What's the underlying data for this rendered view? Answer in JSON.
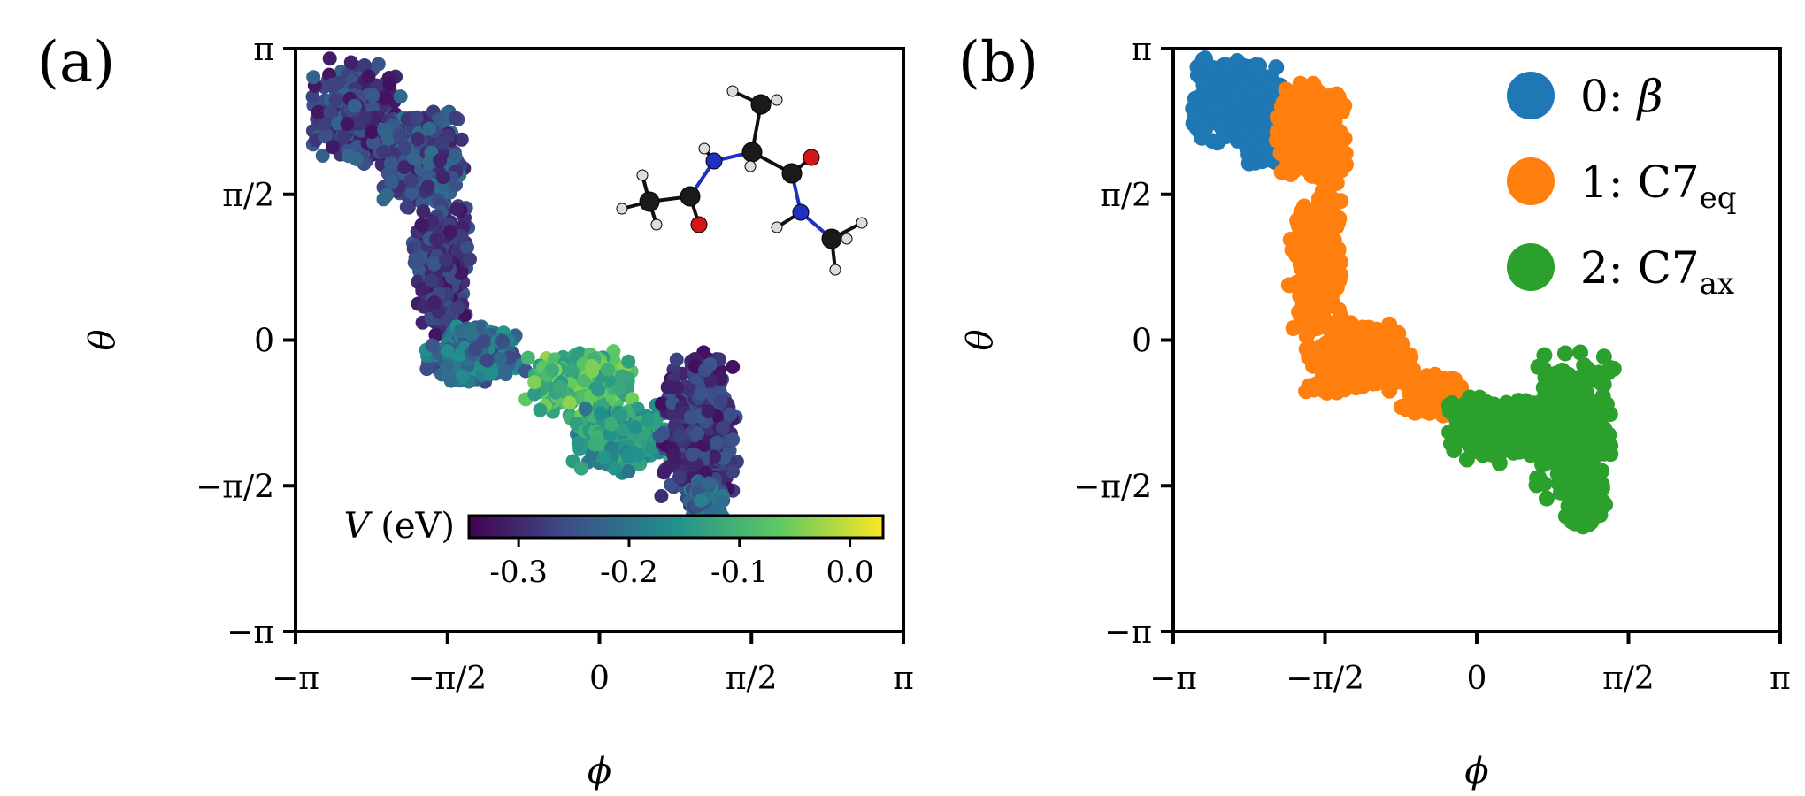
{
  "chart_data": [
    {
      "panel_label": "(a)",
      "type": "scatter",
      "title": "",
      "xlabel": "ϕ",
      "ylabel": "θ",
      "xlim": [
        -3.1416,
        3.1416
      ],
      "ylim": [
        -3.1416,
        3.1416
      ],
      "xticks": [
        -3.1416,
        -1.5708,
        0,
        1.5708,
        3.1416
      ],
      "xtick_labels": [
        "−π",
        "−π/2",
        "0",
        "π/2",
        "π"
      ],
      "yticks": [
        -3.1416,
        -1.5708,
        0,
        1.5708,
        3.1416
      ],
      "ytick_labels": [
        "−π",
        "−π/2",
        "0",
        "π/2",
        "π"
      ],
      "grid": false,
      "color_mapping": "potential energy V (eV), viridis colormap",
      "colorbar": {
        "label": "V (eV)",
        "range": [
          -0.345,
          0.03
        ],
        "ticks": [
          -0.3,
          -0.2,
          -0.1,
          0.0
        ],
        "tick_labels": [
          "-0.3",
          "-0.2",
          "-0.1",
          "0.0"
        ],
        "colors": [
          "#440154",
          "#3b528b",
          "#21918c",
          "#5ec962",
          "#fde725"
        ],
        "placement": "bottom-right inside axes"
      },
      "inset": "ball-and-stick molecule image (alanine dipeptide), top-right",
      "atom_colors": {
        "carbon": "#1a1a1a",
        "nitrogen": "#1f2fbf",
        "oxygen": "#d01818",
        "hydrogen": "#dcdcdc"
      },
      "regions": [
        {
          "x": [
            -3.0,
            -2.05
          ],
          "y": [
            1.85,
            3.05
          ],
          "V": [
            -0.33,
            -0.22
          ]
        },
        {
          "x": [
            -2.3,
            -1.35
          ],
          "y": [
            1.4,
            2.55
          ],
          "V": [
            -0.31,
            -0.2
          ]
        },
        {
          "x": [
            -1.95,
            -1.3
          ],
          "y": [
            0.0,
            1.6
          ],
          "V": [
            -0.33,
            -0.24
          ]
        },
        {
          "x": [
            -1.85,
            -0.75
          ],
          "y": [
            -0.5,
            0.2
          ],
          "V": [
            -0.27,
            -0.15
          ]
        },
        {
          "x": [
            -0.8,
            0.45
          ],
          "y": [
            -0.85,
            -0.1
          ],
          "V": [
            -0.15,
            -0.03
          ]
        },
        {
          "x": [
            -0.3,
            0.75
          ],
          "y": [
            -1.45,
            -0.7
          ],
          "V": [
            -0.2,
            -0.1
          ]
        },
        {
          "x": [
            0.6,
            1.45
          ],
          "y": [
            -1.85,
            -0.1
          ],
          "V": [
            -0.33,
            -0.24
          ]
        },
        {
          "x": [
            0.9,
            1.3
          ],
          "y": [
            -2.05,
            -1.5
          ],
          "V": [
            -0.27,
            -0.18
          ]
        }
      ]
    },
    {
      "panel_label": "(b)",
      "type": "scatter",
      "title": "",
      "xlabel": "ϕ",
      "ylabel": "θ",
      "xlim": [
        -3.1416,
        3.1416
      ],
      "ylim": [
        -3.1416,
        3.1416
      ],
      "xticks": [
        -3.1416,
        -1.5708,
        0,
        1.5708,
        3.1416
      ],
      "xtick_labels": [
        "−π",
        "−π/2",
        "0",
        "π/2",
        "π"
      ],
      "yticks": [
        -3.1416,
        -1.5708,
        0,
        1.5708,
        3.1416
      ],
      "ytick_labels": [
        "−π",
        "−π/2",
        "0",
        "π/2",
        "π"
      ],
      "grid": false,
      "legend_placement": "top-right",
      "series": [
        {
          "name": "0: β",
          "label_parts": {
            "prefix": "0: ",
            "main": "β",
            "sub": ""
          },
          "color": "#1f77b4",
          "regions": [
            {
              "x": [
                -3.0,
                -1.95
              ],
              "y": [
                2.05,
                3.1
              ]
            },
            {
              "x": [
                -2.55,
                -1.75
              ],
              "y": [
                1.85,
                2.55
              ]
            }
          ]
        },
        {
          "name": "1: C7eq",
          "label_parts": {
            "prefix": "1: ",
            "main": "C7",
            "sub": "eq"
          },
          "color": "#ff7f0e",
          "regions": [
            {
              "x": [
                -2.1,
                -1.3
              ],
              "y": [
                1.6,
                2.85
              ]
            },
            {
              "x": [
                -1.95,
                -1.35
              ],
              "y": [
                0.0,
                1.7
              ]
            },
            {
              "x": [
                -1.85,
                -0.6
              ],
              "y": [
                -0.6,
                0.2
              ]
            },
            {
              "x": [
                -0.8,
                -0.1
              ],
              "y": [
                -0.85,
                -0.35
              ]
            }
          ]
        },
        {
          "name": "2: C7ax",
          "label_parts": {
            "prefix": "2: ",
            "main": "C7",
            "sub": "ax"
          },
          "color": "#2ca02c",
          "regions": [
            {
              "x": [
                -0.35,
                0.9
              ],
              "y": [
                -1.35,
                -0.55
              ]
            },
            {
              "x": [
                0.55,
                1.45
              ],
              "y": [
                -1.85,
                -0.1
              ]
            },
            {
              "x": [
                0.9,
                1.3
              ],
              "y": [
                -2.05,
                -1.5
              ]
            }
          ]
        }
      ]
    }
  ]
}
